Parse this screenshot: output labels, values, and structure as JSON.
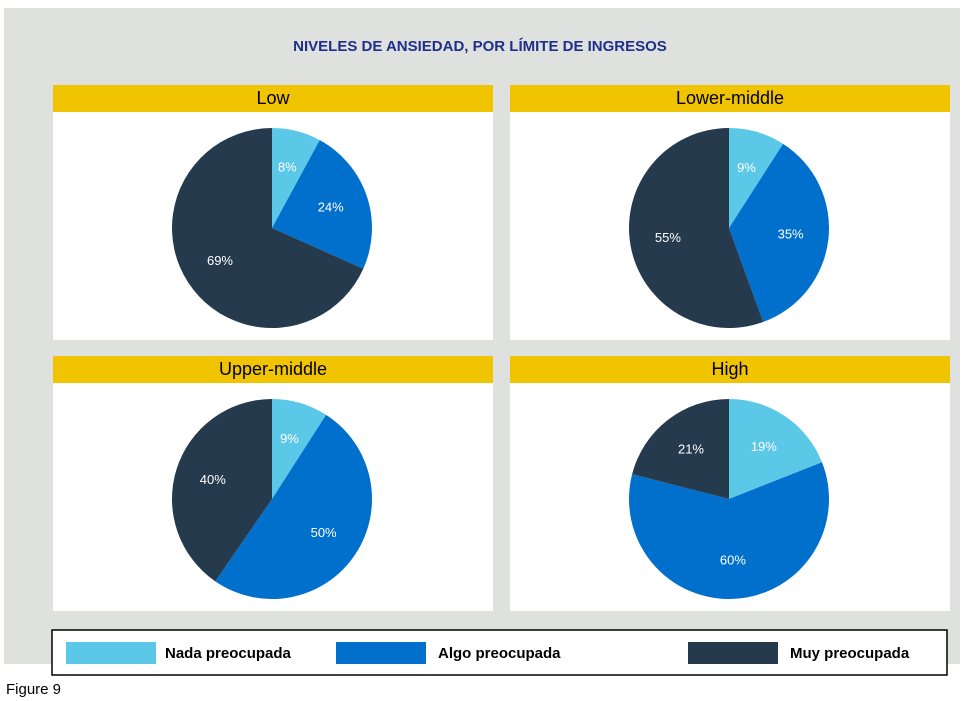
{
  "title": "NIVELES DE ANSIEDAD, POR LÍMITE DE INGRESOS",
  "caption": "Figure 9",
  "legend": {
    "categories": [
      "Nada preocupada",
      "Algo preocupada",
      "Muy preocupada"
    ],
    "colors": [
      "#5bc8e8",
      "#0070cc",
      "#253a4c"
    ]
  },
  "chart_data": [
    {
      "type": "pie",
      "title": "Low",
      "values": [
        8,
        24,
        69
      ],
      "value_labels": [
        "8%",
        "24%",
        "69%"
      ]
    },
    {
      "type": "pie",
      "title": "Lower-middle",
      "values": [
        9,
        35,
        55
      ],
      "value_labels": [
        "9%",
        "35%",
        "55%"
      ]
    },
    {
      "type": "pie",
      "title": "Upper-middle",
      "values": [
        9,
        50,
        40
      ],
      "value_labels": [
        "9%",
        "50%",
        "40%"
      ]
    },
    {
      "type": "pie",
      "title": "High",
      "values": [
        19,
        60,
        21
      ],
      "value_labels": [
        "19%",
        "60%",
        "21%"
      ]
    }
  ]
}
